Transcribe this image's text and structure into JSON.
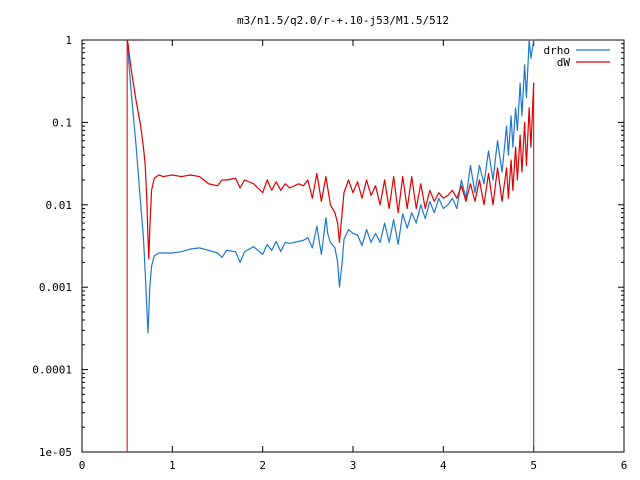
{
  "chart_data": {
    "type": "line",
    "title": "m3/n1.5/q2.0/r-+.10-j53/M1.5/512",
    "xlabel": "",
    "ylabel": "",
    "xlim": [
      0,
      6
    ],
    "ylim": [
      1e-05,
      1
    ],
    "y_scale": "log",
    "x_ticks": [
      0,
      1,
      2,
      3,
      4,
      5,
      6
    ],
    "x_tick_labels": [
      "0",
      "1",
      "2",
      "3",
      "4",
      "5",
      "6"
    ],
    "y_ticks": [
      1e-05,
      0.0001,
      0.001,
      0.01,
      0.1,
      1
    ],
    "y_tick_labels": [
      "1e-05",
      "0.0001",
      "0.001",
      "0.01",
      "0.1",
      "1"
    ],
    "grid": false,
    "legend_position": "top-right",
    "series": [
      {
        "name": "drho",
        "color": "#1f77d4",
        "x": [
          0.5,
          0.51,
          0.52,
          0.55,
          0.6,
          0.65,
          0.68,
          0.7,
          0.72,
          0.73,
          0.74,
          0.75,
          0.77,
          0.8,
          0.85,
          0.9,
          1.0,
          1.1,
          1.2,
          1.3,
          1.35,
          1.4,
          1.5,
          1.55,
          1.6,
          1.7,
          1.75,
          1.8,
          1.9,
          2.0,
          2.05,
          2.1,
          2.15,
          2.2,
          2.25,
          2.3,
          2.35,
          2.4,
          2.45,
          2.5,
          2.55,
          2.6,
          2.65,
          2.7,
          2.72,
          2.75,
          2.8,
          2.83,
          2.85,
          2.88,
          2.9,
          2.95,
          3.0,
          3.05,
          3.1,
          3.15,
          3.2,
          3.25,
          3.3,
          3.35,
          3.4,
          3.45,
          3.5,
          3.55,
          3.6,
          3.65,
          3.7,
          3.75,
          3.8,
          3.85,
          3.9,
          3.95,
          4.0,
          4.05,
          4.1,
          4.15,
          4.2,
          4.25,
          4.3,
          4.35,
          4.4,
          4.45,
          4.5,
          4.55,
          4.6,
          4.65,
          4.7,
          4.72,
          4.75,
          4.77,
          4.8,
          4.82,
          4.85,
          4.87,
          4.9,
          4.92,
          4.95,
          4.97,
          5.0
        ],
        "values": [
          1.0,
          0.8,
          0.5,
          0.2,
          0.05,
          0.01,
          0.004,
          0.0015,
          0.0005,
          0.00028,
          0.0005,
          0.001,
          0.0018,
          0.0024,
          0.0026,
          0.0026,
          0.0026,
          0.0027,
          0.0029,
          0.003,
          0.0029,
          0.0028,
          0.0026,
          0.0023,
          0.0028,
          0.0027,
          0.002,
          0.0027,
          0.0031,
          0.0025,
          0.0033,
          0.0028,
          0.0036,
          0.0027,
          0.0035,
          0.0034,
          0.0035,
          0.0036,
          0.0037,
          0.004,
          0.003,
          0.0055,
          0.0025,
          0.007,
          0.0045,
          0.0035,
          0.003,
          0.002,
          0.001,
          0.002,
          0.0038,
          0.005,
          0.0045,
          0.0043,
          0.0032,
          0.005,
          0.0035,
          0.0045,
          0.0035,
          0.006,
          0.0035,
          0.0066,
          0.0033,
          0.0078,
          0.0052,
          0.008,
          0.006,
          0.01,
          0.0068,
          0.011,
          0.008,
          0.012,
          0.009,
          0.01,
          0.012,
          0.009,
          0.02,
          0.012,
          0.03,
          0.014,
          0.03,
          0.018,
          0.045,
          0.02,
          0.06,
          0.025,
          0.09,
          0.04,
          0.12,
          0.05,
          0.15,
          0.08,
          0.3,
          0.12,
          0.5,
          0.2,
          1.0,
          0.6,
          1.0
        ]
      },
      {
        "name": "dW",
        "color": "#e00000",
        "x": [
          0.5,
          0.51,
          0.52,
          0.55,
          0.6,
          0.65,
          0.68,
          0.7,
          0.72,
          0.73,
          0.74,
          0.75,
          0.77,
          0.8,
          0.85,
          0.9,
          1.0,
          1.1,
          1.2,
          1.3,
          1.35,
          1.4,
          1.5,
          1.55,
          1.6,
          1.7,
          1.75,
          1.8,
          1.9,
          2.0,
          2.05,
          2.1,
          2.15,
          2.2,
          2.25,
          2.3,
          2.35,
          2.4,
          2.45,
          2.5,
          2.55,
          2.6,
          2.65,
          2.7,
          2.72,
          2.75,
          2.8,
          2.83,
          2.85,
          2.88,
          2.9,
          2.95,
          3.0,
          3.05,
          3.1,
          3.15,
          3.2,
          3.25,
          3.3,
          3.35,
          3.4,
          3.45,
          3.5,
          3.55,
          3.6,
          3.65,
          3.7,
          3.75,
          3.8,
          3.85,
          3.9,
          3.95,
          4.0,
          4.05,
          4.1,
          4.15,
          4.2,
          4.25,
          4.3,
          4.35,
          4.4,
          4.45,
          4.5,
          4.55,
          4.6,
          4.65,
          4.7,
          4.72,
          4.75,
          4.77,
          4.8,
          4.82,
          4.85,
          4.87,
          4.9,
          4.92,
          4.95,
          4.97,
          5.0
        ],
        "values": [
          1.0,
          0.9,
          0.7,
          0.4,
          0.18,
          0.09,
          0.05,
          0.03,
          0.01,
          0.004,
          0.0022,
          0.005,
          0.015,
          0.021,
          0.023,
          0.022,
          0.023,
          0.022,
          0.023,
          0.022,
          0.02,
          0.018,
          0.017,
          0.02,
          0.02,
          0.021,
          0.016,
          0.02,
          0.018,
          0.014,
          0.02,
          0.015,
          0.019,
          0.015,
          0.018,
          0.016,
          0.017,
          0.018,
          0.017,
          0.02,
          0.012,
          0.024,
          0.011,
          0.022,
          0.016,
          0.01,
          0.008,
          0.006,
          0.0035,
          0.008,
          0.014,
          0.02,
          0.014,
          0.019,
          0.012,
          0.02,
          0.013,
          0.017,
          0.01,
          0.02,
          0.009,
          0.022,
          0.008,
          0.022,
          0.009,
          0.022,
          0.009,
          0.018,
          0.009,
          0.015,
          0.011,
          0.014,
          0.012,
          0.013,
          0.015,
          0.012,
          0.017,
          0.011,
          0.018,
          0.011,
          0.02,
          0.01,
          0.024,
          0.01,
          0.028,
          0.011,
          0.028,
          0.012,
          0.035,
          0.015,
          0.05,
          0.02,
          0.07,
          0.025,
          0.1,
          0.03,
          0.15,
          0.05,
          0.3
        ]
      }
    ]
  }
}
